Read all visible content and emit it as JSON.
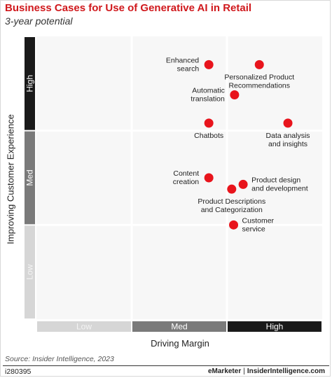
{
  "header": {
    "title": "Business Cases for Use of Generative AI in Retail",
    "subtitle": "3-year potential"
  },
  "chart_data": {
    "type": "scatter",
    "title": "Business Cases for Use of Generative AI in Retail",
    "subtitle": "3-year potential",
    "xlabel": "Driving Margin",
    "ylabel": "Improving Customer Experience",
    "x_categories": [
      "Low",
      "Med",
      "High"
    ],
    "y_categories": [
      "Low",
      "Med",
      "High"
    ],
    "xlim": [
      0,
      3
    ],
    "ylim": [
      0,
      3
    ],
    "grid": true,
    "point_color": "#e8141c",
    "points": [
      {
        "label": "Enhanced search",
        "x": 1.81,
        "y": 2.7,
        "label_side": "left"
      },
      {
        "label": "Personalized Product Recommendations",
        "x": 2.34,
        "y": 2.7,
        "label_side": "below"
      },
      {
        "label": "Automatic translation",
        "x": 2.08,
        "y": 2.38,
        "label_side": "left"
      },
      {
        "label": "Chatbots",
        "x": 1.81,
        "y": 2.08,
        "label_side": "below"
      },
      {
        "label": "Data analysis and insights",
        "x": 2.64,
        "y": 2.08,
        "label_side": "below"
      },
      {
        "label": "Content creation",
        "x": 1.81,
        "y": 1.5,
        "label_side": "left"
      },
      {
        "label": "Product design and development",
        "x": 2.17,
        "y": 1.43,
        "label_side": "right"
      },
      {
        "label": "Product Descriptions and Categorization",
        "x": 2.05,
        "y": 1.38,
        "label_side": "below"
      },
      {
        "label": "Customer service",
        "x": 2.07,
        "y": 1.0,
        "label_side": "right"
      }
    ]
  },
  "axis_colors": {
    "low": "#d6d6d6",
    "med": "#7a7a7a",
    "high": "#1a1a1a"
  },
  "footer": {
    "source": "Source: Insider Intelligence, 2023",
    "code": "i280395",
    "brand_left": "eMarketer",
    "brand_sep": "|",
    "brand_right": "InsiderIntelligence.com"
  }
}
